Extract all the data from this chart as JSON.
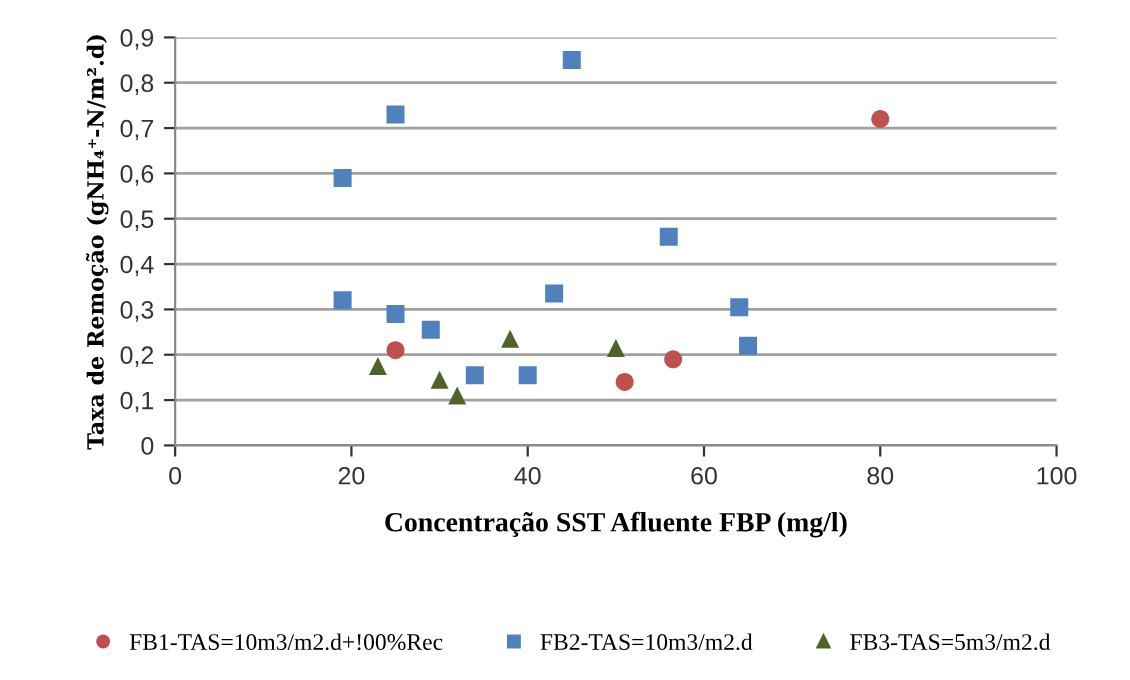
{
  "chart_data": {
    "type": "scatter",
    "xlabel": "Concentração SST Afluente FBP (mg/l)",
    "ylabel": "Taxa de Remoção (gNH₄⁺-N/m².d)",
    "xlim": [
      0,
      100
    ],
    "xticks": [
      0,
      20,
      40,
      60,
      80,
      100
    ],
    "ylim": [
      0,
      0.9
    ],
    "yticks": [
      {
        "value": 0,
        "label": "0"
      },
      {
        "value": 0.1,
        "label": "0,1"
      },
      {
        "value": 0.2,
        "label": "0,2"
      },
      {
        "value": 0.3,
        "label": "0,3"
      },
      {
        "value": 0.4,
        "label": "0,4"
      },
      {
        "value": 0.5,
        "label": "0,5"
      },
      {
        "value": 0.6,
        "label": "0,6"
      },
      {
        "value": 0.7,
        "label": "0,7"
      },
      {
        "value": 0.8,
        "label": "0,8"
      },
      {
        "value": 0.9,
        "label": "0,9"
      }
    ],
    "grid": "y",
    "legend": "bottom",
    "series": [
      {
        "name": "FB1-TAS=10m3/m2.d+!00%Rec",
        "color": "#c0504d",
        "marker": "circle",
        "x": [
          25,
          51,
          56.5,
          80
        ],
        "values": [
          0.21,
          0.14,
          0.19,
          0.72
        ]
      },
      {
        "name": "FB2-TAS=10m3/m2.d",
        "color": "#4f81bd",
        "marker": "square",
        "x": [
          19,
          19,
          25,
          25,
          29,
          34,
          40,
          43,
          45,
          56,
          64,
          65
        ],
        "values": [
          0.59,
          0.32,
          0.73,
          0.29,
          0.255,
          0.155,
          0.155,
          0.335,
          0.85,
          0.46,
          0.305,
          0.22
        ]
      },
      {
        "name": "FB3-TAS=5m3/m2.d",
        "color": "#4f6228",
        "marker": "triangle",
        "x": [
          23,
          30,
          32,
          38,
          50
        ],
        "values": [
          0.175,
          0.145,
          0.11,
          0.235,
          0.215
        ]
      }
    ]
  }
}
